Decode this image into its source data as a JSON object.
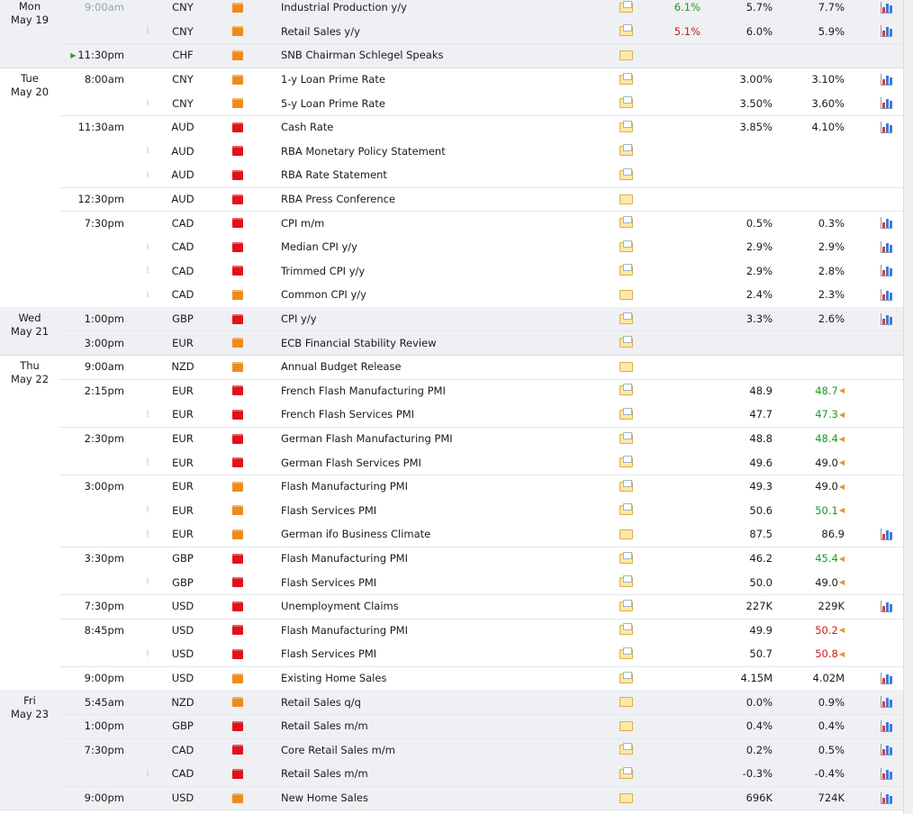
{
  "days": [
    {
      "weekday": "Mon",
      "date": "May 19",
      "groups": [
        {
          "rows": [
            {
              "time": "9:00am",
              "time_faded": true,
              "currency": "CNY",
              "impact": "medium",
              "title": "Industrial Production y/y",
              "folder": "doc",
              "actual": "6.1%",
              "actual_color": "green",
              "forecast": "5.7%",
              "previous": "7.7%",
              "graph": true
            },
            {
              "time": "",
              "currency": "CNY",
              "impact": "medium",
              "title": "Retail Sales y/y",
              "folder": "doc",
              "actual": "5.1%",
              "actual_color": "red",
              "forecast": "6.0%",
              "previous": "5.9%",
              "graph": true
            }
          ]
        },
        {
          "rows": [
            {
              "time": "11:30pm",
              "upcoming": true,
              "currency": "CHF",
              "impact": "medium",
              "title": "SNB Chairman Schlegel Speaks",
              "folder": "plain",
              "actual": "",
              "forecast": "",
              "previous": "",
              "graph": false
            }
          ]
        }
      ]
    },
    {
      "weekday": "Tue",
      "date": "May 20",
      "groups": [
        {
          "rows": [
            {
              "time": "8:00am",
              "currency": "CNY",
              "impact": "medium",
              "title": "1-y Loan Prime Rate",
              "folder": "doc",
              "actual": "",
              "forecast": "3.00%",
              "previous": "3.10%",
              "graph": true
            },
            {
              "time": "",
              "currency": "CNY",
              "impact": "medium",
              "title": "5-y Loan Prime Rate",
              "folder": "doc",
              "actual": "",
              "forecast": "3.50%",
              "previous": "3.60%",
              "graph": true
            }
          ]
        },
        {
          "rows": [
            {
              "time": "11:30am",
              "currency": "AUD",
              "impact": "high",
              "title": "Cash Rate",
              "folder": "doc",
              "actual": "",
              "forecast": "3.85%",
              "previous": "4.10%",
              "graph": true
            },
            {
              "time": "",
              "currency": "AUD",
              "impact": "high",
              "title": "RBA Monetary Policy Statement",
              "folder": "doc",
              "actual": "",
              "forecast": "",
              "previous": "",
              "graph": false
            },
            {
              "time": "",
              "currency": "AUD",
              "impact": "high",
              "title": "RBA Rate Statement",
              "folder": "doc",
              "actual": "",
              "forecast": "",
              "previous": "",
              "graph": false
            }
          ]
        },
        {
          "rows": [
            {
              "time": "12:30pm",
              "currency": "AUD",
              "impact": "high",
              "title": "RBA Press Conference",
              "folder": "plain",
              "actual": "",
              "forecast": "",
              "previous": "",
              "graph": false
            }
          ]
        },
        {
          "rows": [
            {
              "time": "7:30pm",
              "currency": "CAD",
              "impact": "high",
              "title": "CPI m/m",
              "folder": "doc",
              "actual": "",
              "forecast": "0.5%",
              "previous": "0.3%",
              "graph": true
            },
            {
              "time": "",
              "currency": "CAD",
              "impact": "high",
              "title": "Median CPI y/y",
              "folder": "doc",
              "actual": "",
              "forecast": "2.9%",
              "previous": "2.9%",
              "graph": true
            },
            {
              "time": "",
              "currency": "CAD",
              "impact": "high",
              "title": "Trimmed CPI y/y",
              "folder": "doc",
              "actual": "",
              "forecast": "2.9%",
              "previous": "2.8%",
              "graph": true
            },
            {
              "time": "",
              "currency": "CAD",
              "impact": "medium",
              "title": "Common CPI y/y",
              "folder": "plain",
              "actual": "",
              "forecast": "2.4%",
              "previous": "2.3%",
              "graph": true
            }
          ]
        }
      ]
    },
    {
      "weekday": "Wed",
      "date": "May 21",
      "groups": [
        {
          "rows": [
            {
              "time": "1:00pm",
              "currency": "GBP",
              "impact": "high",
              "title": "CPI y/y",
              "folder": "doc",
              "actual": "",
              "forecast": "3.3%",
              "previous": "2.6%",
              "graph": true
            }
          ]
        },
        {
          "rows": [
            {
              "time": "3:00pm",
              "currency": "EUR",
              "impact": "medium",
              "title": "ECB Financial Stability Review",
              "folder": "doc",
              "actual": "",
              "forecast": "",
              "previous": "",
              "graph": false
            }
          ]
        }
      ]
    },
    {
      "weekday": "Thu",
      "date": "May 22",
      "groups": [
        {
          "rows": [
            {
              "time": "9:00am",
              "currency": "NZD",
              "impact": "medium",
              "title": "Annual Budget Release",
              "folder": "plain",
              "actual": "",
              "forecast": "",
              "previous": "",
              "graph": false
            }
          ]
        },
        {
          "rows": [
            {
              "time": "2:15pm",
              "currency": "EUR",
              "impact": "high",
              "title": "French Flash Manufacturing PMI",
              "folder": "doc",
              "actual": "",
              "forecast": "48.9",
              "previous": "48.7",
              "previous_color": "green",
              "previous_revised": true,
              "graph": false
            },
            {
              "time": "",
              "currency": "EUR",
              "impact": "high",
              "title": "French Flash Services PMI",
              "folder": "doc",
              "actual": "",
              "forecast": "47.7",
              "previous": "47.3",
              "previous_color": "green",
              "previous_revised": true,
              "graph": false
            }
          ]
        },
        {
          "rows": [
            {
              "time": "2:30pm",
              "currency": "EUR",
              "impact": "high",
              "title": "German Flash Manufacturing PMI",
              "folder": "doc",
              "actual": "",
              "forecast": "48.8",
              "previous": "48.4",
              "previous_color": "green",
              "previous_revised": true,
              "graph": false
            },
            {
              "time": "",
              "currency": "EUR",
              "impact": "high",
              "title": "German Flash Services PMI",
              "folder": "doc",
              "actual": "",
              "forecast": "49.6",
              "previous": "49.0",
              "previous_revised": true,
              "graph": false
            }
          ]
        },
        {
          "rows": [
            {
              "time": "3:00pm",
              "currency": "EUR",
              "impact": "medium",
              "title": "Flash Manufacturing PMI",
              "folder": "doc",
              "actual": "",
              "forecast": "49.3",
              "previous": "49.0",
              "previous_revised": true,
              "graph": false
            },
            {
              "time": "",
              "currency": "EUR",
              "impact": "medium",
              "title": "Flash Services PMI",
              "folder": "doc",
              "actual": "",
              "forecast": "50.6",
              "previous": "50.1",
              "previous_color": "green",
              "previous_revised": true,
              "graph": false
            },
            {
              "time": "",
              "currency": "EUR",
              "impact": "medium",
              "title": "German ifo Business Climate",
              "folder": "plain",
              "actual": "",
              "forecast": "87.5",
              "previous": "86.9",
              "graph": true
            }
          ]
        },
        {
          "rows": [
            {
              "time": "3:30pm",
              "currency": "GBP",
              "impact": "high",
              "title": "Flash Manufacturing PMI",
              "folder": "doc",
              "actual": "",
              "forecast": "46.2",
              "previous": "45.4",
              "previous_color": "green",
              "previous_revised": true,
              "graph": false
            },
            {
              "time": "",
              "currency": "GBP",
              "impact": "high",
              "title": "Flash Services PMI",
              "folder": "doc",
              "actual": "",
              "forecast": "50.0",
              "previous": "49.0",
              "previous_revised": true,
              "graph": false
            }
          ]
        },
        {
          "rows": [
            {
              "time": "7:30pm",
              "currency": "USD",
              "impact": "high",
              "title": "Unemployment Claims",
              "folder": "doc",
              "actual": "",
              "forecast": "227K",
              "previous": "229K",
              "graph": true
            }
          ]
        },
        {
          "rows": [
            {
              "time": "8:45pm",
              "currency": "USD",
              "impact": "high",
              "title": "Flash Manufacturing PMI",
              "folder": "doc",
              "actual": "",
              "forecast": "49.9",
              "previous": "50.2",
              "previous_color": "red",
              "previous_revised": true,
              "graph": false
            },
            {
              "time": "",
              "currency": "USD",
              "impact": "high",
              "title": "Flash Services PMI",
              "folder": "doc",
              "actual": "",
              "forecast": "50.7",
              "previous": "50.8",
              "previous_color": "red",
              "previous_revised": true,
              "graph": false
            }
          ]
        },
        {
          "rows": [
            {
              "time": "9:00pm",
              "currency": "USD",
              "impact": "medium",
              "title": "Existing Home Sales",
              "folder": "doc",
              "actual": "",
              "forecast": "4.15M",
              "previous": "4.02M",
              "graph": true
            }
          ]
        }
      ]
    },
    {
      "weekday": "Fri",
      "date": "May 23",
      "groups": [
        {
          "rows": [
            {
              "time": "5:45am",
              "currency": "NZD",
              "impact": "medium",
              "title": "Retail Sales q/q",
              "folder": "plain",
              "actual": "",
              "forecast": "0.0%",
              "previous": "0.9%",
              "graph": true
            }
          ]
        },
        {
          "rows": [
            {
              "time": "1:00pm",
              "currency": "GBP",
              "impact": "high",
              "title": "Retail Sales m/m",
              "folder": "plain",
              "actual": "",
              "forecast": "0.4%",
              "previous": "0.4%",
              "graph": true
            }
          ]
        },
        {
          "rows": [
            {
              "time": "7:30pm",
              "currency": "CAD",
              "impact": "high",
              "title": "Core Retail Sales m/m",
              "folder": "doc",
              "actual": "",
              "forecast": "0.2%",
              "previous": "0.5%",
              "graph": true
            },
            {
              "time": "",
              "currency": "CAD",
              "impact": "high",
              "title": "Retail Sales m/m",
              "folder": "doc",
              "actual": "",
              "forecast": "-0.3%",
              "previous": "-0.4%",
              "graph": true
            }
          ]
        },
        {
          "rows": [
            {
              "time": "9:00pm",
              "currency": "USD",
              "impact": "medium",
              "title": "New Home Sales",
              "folder": "plain",
              "actual": "",
              "forecast": "696K",
              "previous": "724K",
              "graph": true
            }
          ]
        }
      ]
    }
  ],
  "colors": {
    "actual_green": "#1f9a1f",
    "actual_red": "#d41616",
    "impact_medium": "#f08a1c",
    "impact_high": "#e0121b",
    "day_shade": "#eef0f4"
  }
}
